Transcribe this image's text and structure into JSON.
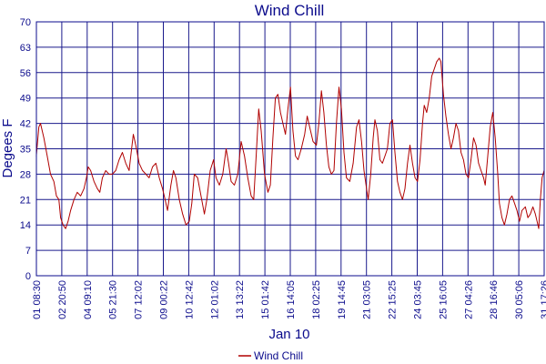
{
  "chart_data": {
    "type": "line",
    "title": "Wind Chill",
    "xlabel": "Jan 10",
    "ylabel": "Degees F",
    "ylim": [
      0,
      70
    ],
    "yticks": [
      0,
      7,
      14,
      21,
      28,
      35,
      42,
      49,
      56,
      63,
      70
    ],
    "xticks": [
      "01 08:30",
      "02 20:50",
      "04 09:10",
      "05 21:30",
      "07 12:02",
      "09 00:22",
      "10 12:42",
      "12 01:02",
      "13 13:22",
      "15 01:42",
      "16 14:05",
      "18 02:25",
      "19 14:45",
      "21 03:05",
      "22 15:25",
      "24 03:45",
      "25 16:05",
      "27 04:26",
      "28 16:46",
      "30 05:06",
      "31 17:26"
    ],
    "xlim_days": [
      1.354,
      31.726
    ],
    "grid": true,
    "legend_position": "bottom-center",
    "series": [
      {
        "name": "Wind Chill",
        "color": "#b00000",
        "points": [
          [
            1.35,
            33
          ],
          [
            1.5,
            41
          ],
          [
            1.6,
            42
          ],
          [
            1.8,
            38
          ],
          [
            2.0,
            33
          ],
          [
            2.2,
            28
          ],
          [
            2.4,
            26
          ],
          [
            2.55,
            22
          ],
          [
            2.7,
            21
          ],
          [
            2.8,
            16
          ],
          [
            2.95,
            14
          ],
          [
            3.1,
            13
          ],
          [
            3.25,
            15
          ],
          [
            3.4,
            18
          ],
          [
            3.6,
            21
          ],
          [
            3.8,
            23
          ],
          [
            4.0,
            22
          ],
          [
            4.2,
            24
          ],
          [
            4.35,
            27
          ],
          [
            4.45,
            30
          ],
          [
            4.6,
            29
          ],
          [
            4.8,
            26
          ],
          [
            5.0,
            24
          ],
          [
            5.15,
            23
          ],
          [
            5.3,
            27
          ],
          [
            5.5,
            29
          ],
          [
            5.7,
            28
          ],
          [
            5.9,
            28
          ],
          [
            6.1,
            29
          ],
          [
            6.3,
            32
          ],
          [
            6.5,
            34
          ],
          [
            6.7,
            31
          ],
          [
            6.9,
            29
          ],
          [
            7.0,
            33
          ],
          [
            7.15,
            39
          ],
          [
            7.3,
            36
          ],
          [
            7.5,
            31
          ],
          [
            7.7,
            29
          ],
          [
            7.9,
            28
          ],
          [
            8.1,
            27
          ],
          [
            8.3,
            30
          ],
          [
            8.5,
            31
          ],
          [
            8.7,
            27
          ],
          [
            8.9,
            24
          ],
          [
            9.0,
            22
          ],
          [
            9.2,
            18
          ],
          [
            9.4,
            25
          ],
          [
            9.55,
            29
          ],
          [
            9.7,
            27
          ],
          [
            9.9,
            21
          ],
          [
            10.1,
            17
          ],
          [
            10.3,
            14
          ],
          [
            10.5,
            15
          ],
          [
            10.65,
            20
          ],
          [
            10.8,
            28
          ],
          [
            11.0,
            27
          ],
          [
            11.2,
            22
          ],
          [
            11.4,
            17
          ],
          [
            11.55,
            21
          ],
          [
            11.75,
            29
          ],
          [
            11.95,
            32
          ],
          [
            12.1,
            27
          ],
          [
            12.3,
            25
          ],
          [
            12.5,
            28
          ],
          [
            12.7,
            35
          ],
          [
            12.85,
            31
          ],
          [
            13.0,
            26
          ],
          [
            13.2,
            25
          ],
          [
            13.4,
            28
          ],
          [
            13.6,
            37
          ],
          [
            13.8,
            33
          ],
          [
            14.0,
            27
          ],
          [
            14.2,
            22
          ],
          [
            14.35,
            21
          ],
          [
            14.5,
            33
          ],
          [
            14.65,
            46
          ],
          [
            14.8,
            40
          ],
          [
            15.0,
            28
          ],
          [
            15.2,
            23
          ],
          [
            15.35,
            25
          ],
          [
            15.5,
            38
          ],
          [
            15.65,
            49
          ],
          [
            15.8,
            50
          ],
          [
            15.95,
            45
          ],
          [
            16.1,
            42
          ],
          [
            16.25,
            39
          ],
          [
            16.4,
            46
          ],
          [
            16.55,
            52
          ],
          [
            16.7,
            40
          ],
          [
            16.85,
            33
          ],
          [
            17.0,
            32
          ],
          [
            17.2,
            35
          ],
          [
            17.4,
            39
          ],
          [
            17.55,
            44
          ],
          [
            17.7,
            41
          ],
          [
            17.9,
            37
          ],
          [
            18.1,
            36
          ],
          [
            18.25,
            42
          ],
          [
            18.4,
            51
          ],
          [
            18.55,
            45
          ],
          [
            18.7,
            36
          ],
          [
            18.85,
            30
          ],
          [
            19.0,
            28
          ],
          [
            19.15,
            29
          ],
          [
            19.3,
            42
          ],
          [
            19.45,
            52
          ],
          [
            19.6,
            46
          ],
          [
            19.75,
            34
          ],
          [
            19.9,
            27
          ],
          [
            20.1,
            26
          ],
          [
            20.3,
            31
          ],
          [
            20.5,
            41
          ],
          [
            20.65,
            43
          ],
          [
            20.8,
            37
          ],
          [
            20.95,
            29
          ],
          [
            21.1,
            24
          ],
          [
            21.2,
            21
          ],
          [
            21.35,
            28
          ],
          [
            21.5,
            38
          ],
          [
            21.6,
            43
          ],
          [
            21.75,
            40
          ],
          [
            21.9,
            32
          ],
          [
            22.05,
            31
          ],
          [
            22.2,
            33
          ],
          [
            22.35,
            35
          ],
          [
            22.5,
            42
          ],
          [
            22.65,
            43
          ],
          [
            22.8,
            34
          ],
          [
            22.95,
            26
          ],
          [
            23.1,
            23
          ],
          [
            23.25,
            21
          ],
          [
            23.4,
            24
          ],
          [
            23.55,
            31
          ],
          [
            23.7,
            36
          ],
          [
            23.85,
            31
          ],
          [
            24.0,
            27
          ],
          [
            24.15,
            26
          ],
          [
            24.3,
            32
          ],
          [
            24.45,
            42
          ],
          [
            24.55,
            47
          ],
          [
            24.7,
            45
          ],
          [
            24.85,
            49
          ],
          [
            25.0,
            55
          ],
          [
            25.15,
            57
          ],
          [
            25.3,
            59
          ],
          [
            25.45,
            60
          ],
          [
            25.55,
            59
          ],
          [
            25.7,
            50
          ],
          [
            25.85,
            44
          ],
          [
            26.0,
            39
          ],
          [
            26.15,
            35
          ],
          [
            26.3,
            38
          ],
          [
            26.45,
            42
          ],
          [
            26.6,
            40
          ],
          [
            26.75,
            34
          ],
          [
            26.9,
            32
          ],
          [
            27.05,
            28
          ],
          [
            27.2,
            27
          ],
          [
            27.35,
            32
          ],
          [
            27.5,
            38
          ],
          [
            27.65,
            36
          ],
          [
            27.8,
            31
          ],
          [
            27.95,
            29
          ],
          [
            28.1,
            27
          ],
          [
            28.2,
            25
          ],
          [
            28.35,
            33
          ],
          [
            28.5,
            41
          ],
          [
            28.65,
            45
          ],
          [
            28.8,
            38
          ],
          [
            28.95,
            28
          ],
          [
            29.05,
            20
          ],
          [
            29.2,
            16
          ],
          [
            29.35,
            14
          ],
          [
            29.5,
            17
          ],
          [
            29.65,
            21
          ],
          [
            29.8,
            22
          ],
          [
            29.95,
            20
          ],
          [
            30.1,
            18
          ],
          [
            30.25,
            15
          ],
          [
            30.4,
            18
          ],
          [
            30.6,
            19
          ],
          [
            30.75,
            16
          ],
          [
            30.9,
            17
          ],
          [
            31.05,
            19
          ],
          [
            31.2,
            17
          ],
          [
            31.3,
            15
          ],
          [
            31.4,
            13
          ],
          [
            31.5,
            21
          ],
          [
            31.6,
            27
          ],
          [
            31.72,
            29
          ]
        ]
      }
    ]
  }
}
